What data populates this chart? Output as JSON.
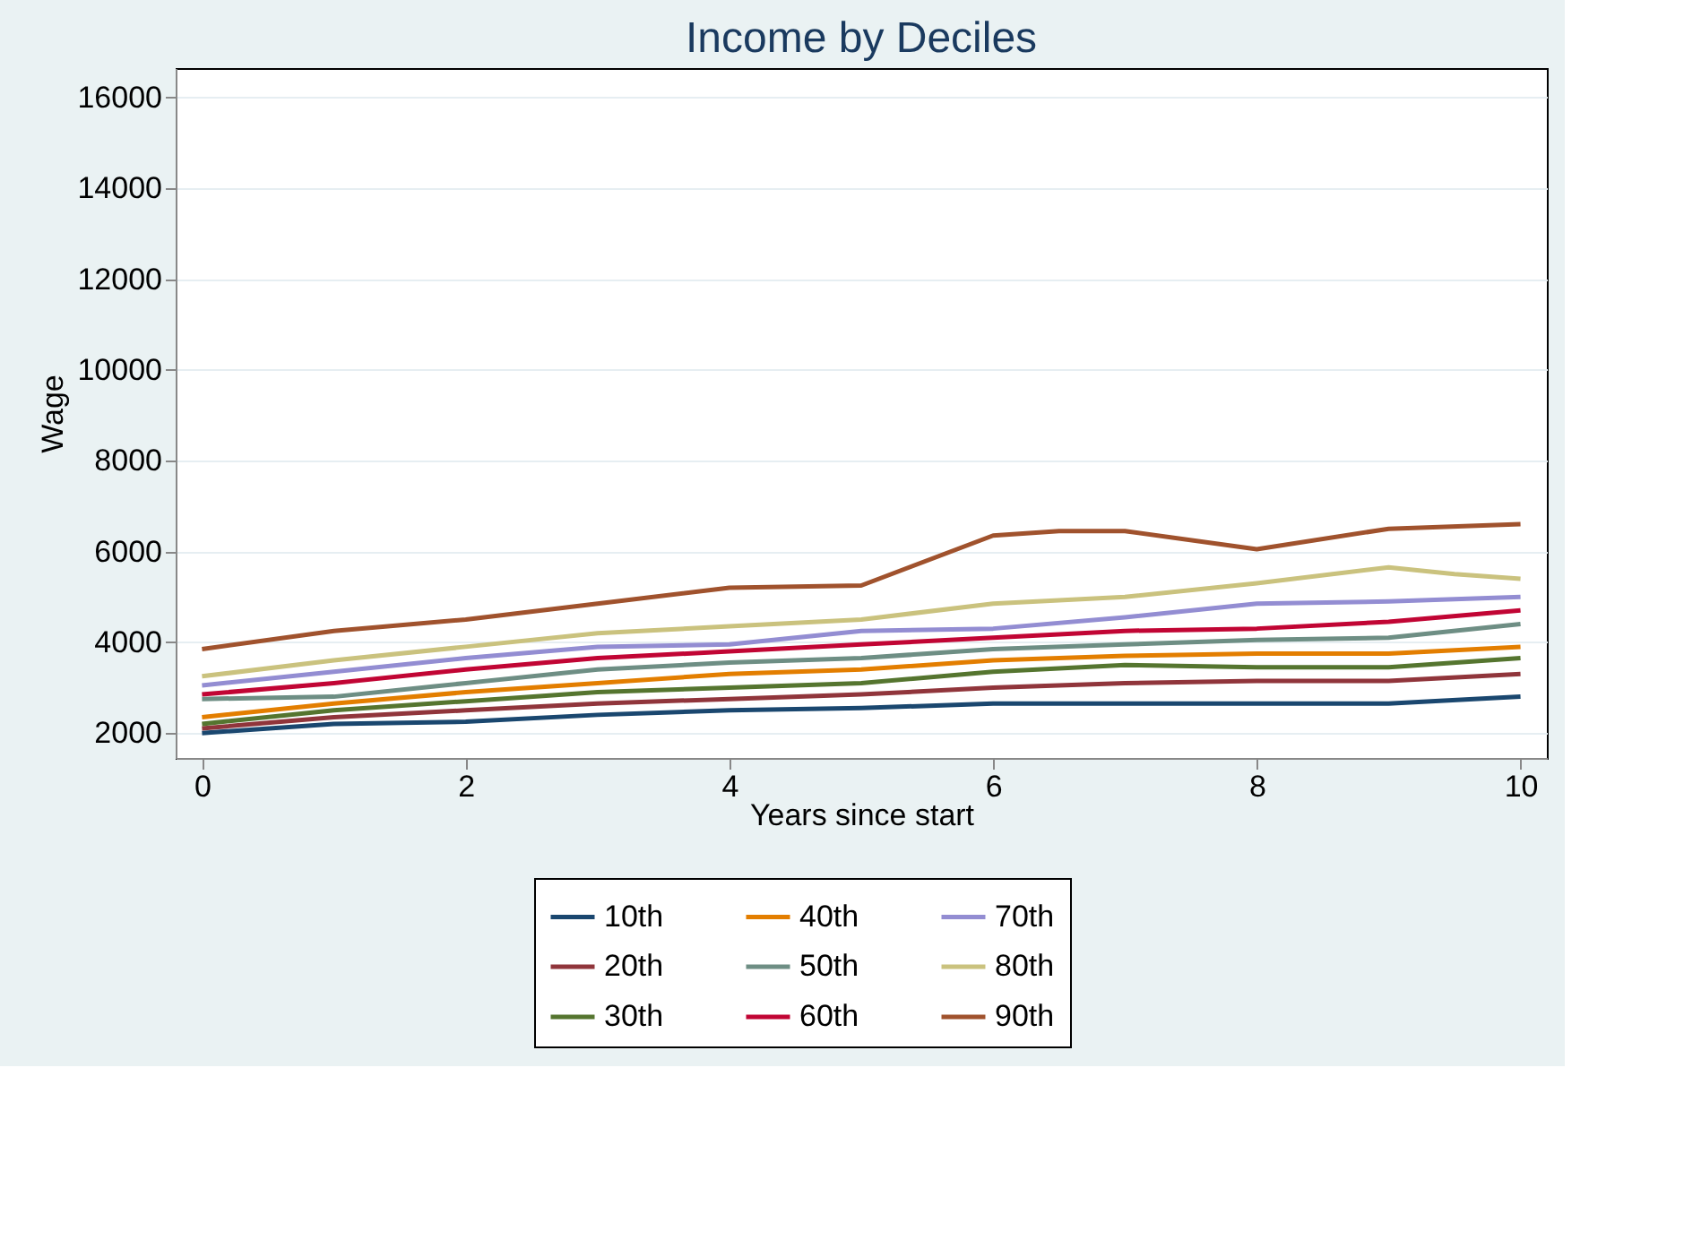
{
  "chart_data": {
    "type": "line",
    "title": "Income by Deciles",
    "xlabel": "Years since start",
    "ylabel": "Wage",
    "x": [
      0,
      1,
      2,
      3,
      4,
      5,
      6,
      7,
      8,
      9,
      10
    ],
    "xlim": [
      -0.2,
      10.2
    ],
    "xticks": [
      0,
      2,
      4,
      6,
      8,
      10
    ],
    "ylim": [
      1450,
      16650
    ],
    "yticks": [
      2000,
      4000,
      6000,
      8000,
      10000,
      12000,
      14000,
      16000
    ],
    "grid": "y",
    "legend": "bottom",
    "line_style": "solid",
    "marker": "none",
    "series": [
      {
        "name": "10th",
        "color": "#1a476f",
        "values": [
          2000,
          2200,
          2250,
          2400,
          2500,
          2550,
          2650,
          2650,
          2650,
          2650,
          2800
        ]
      },
      {
        "name": "20th",
        "color": "#90353b",
        "values": [
          2100,
          2350,
          2500,
          2650,
          2750,
          2850,
          3000,
          3100,
          3150,
          3150,
          3300
        ]
      },
      {
        "name": "30th",
        "color": "#55752f",
        "values": [
          2200,
          2500,
          2700,
          2900,
          3000,
          3100,
          3350,
          3500,
          3450,
          3450,
          3650
        ]
      },
      {
        "name": "40th",
        "color": "#e37e00",
        "values": [
          2350,
          2650,
          2900,
          3100,
          3300,
          3400,
          3600,
          3700,
          3750,
          3750,
          3900
        ]
      },
      {
        "name": "50th",
        "color": "#6e8e84",
        "values": [
          2750,
          2800,
          3100,
          3400,
          3550,
          3650,
          3850,
          3950,
          4050,
          4100,
          4400
        ]
      },
      {
        "name": "60th",
        "color": "#c10534",
        "values": [
          2850,
          3100,
          3400,
          3650,
          3800,
          3950,
          4100,
          4250,
          4300,
          4450,
          4700
        ]
      },
      {
        "name": "70th",
        "color": "#938dd2",
        "values": [
          3050,
          3350,
          3650,
          3900,
          3950,
          4250,
          4300,
          4550,
          4850,
          4900,
          5000
        ]
      },
      {
        "name": "80th",
        "color": "#cac27e",
        "x": [
          0,
          1,
          2,
          3,
          4,
          5,
          6,
          7,
          8,
          9,
          9.5,
          10
        ],
        "values": [
          3250,
          3600,
          3900,
          4200,
          4350,
          4500,
          4850,
          5000,
          5300,
          5650,
          5500,
          5400
        ]
      },
      {
        "name": "90th",
        "color": "#a0522d",
        "x": [
          0,
          1,
          2,
          3,
          4,
          5,
          6,
          6.5,
          7,
          8,
          9,
          10
        ],
        "values": [
          3850,
          4250,
          4500,
          4850,
          5200,
          5250,
          6350,
          6450,
          6450,
          6050,
          6500,
          6600
        ]
      }
    ]
  }
}
